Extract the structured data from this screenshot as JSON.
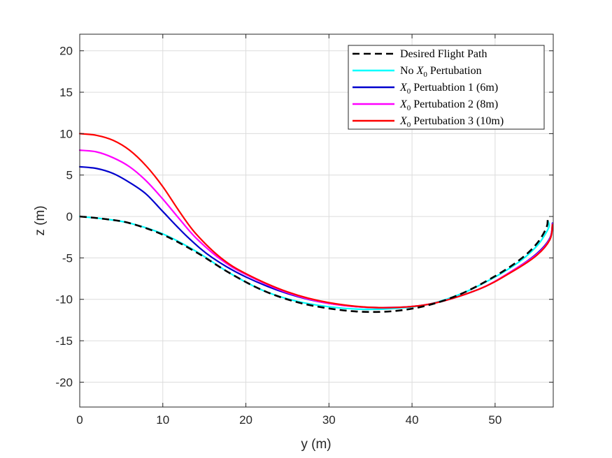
{
  "chart_data": {
    "type": "line",
    "title": "",
    "xlabel": "y (m)",
    "ylabel": "z (m)",
    "xlim": [
      0,
      57
    ],
    "ylim": [
      -23,
      22
    ],
    "xticks": [
      0,
      10,
      20,
      30,
      40,
      50
    ],
    "yticks": [
      20,
      15,
      10,
      5,
      0,
      -5,
      -10,
      -15,
      -20
    ],
    "grid": true,
    "legend_position": "top-right",
    "series": [
      {
        "name": "Desired Flight Path",
        "color": "#000000",
        "style": "dashed",
        "x": [
          0,
          3,
          6,
          10,
          14,
          18,
          22,
          26,
          30,
          34,
          38,
          42,
          46,
          50,
          53,
          55,
          56.2,
          56.3
        ],
        "y": [
          0,
          -0.3,
          -0.8,
          -2.2,
          -4.3,
          -6.8,
          -8.9,
          -10.3,
          -11.1,
          -11.5,
          -11.4,
          -10.7,
          -9.3,
          -7.2,
          -5.2,
          -3.3,
          -1.3,
          0
        ]
      },
      {
        "name": "No X0 Pertubation",
        "color": "#00FFFF",
        "style": "solid",
        "x": [
          0,
          3,
          6,
          10,
          14,
          18,
          22,
          26,
          30,
          34,
          38,
          42,
          46,
          50,
          53,
          55,
          56,
          56.5,
          56.4
        ],
        "y": [
          0,
          -0.3,
          -0.8,
          -2.1,
          -4.2,
          -6.8,
          -8.9,
          -10.2,
          -10.9,
          -11.2,
          -11.1,
          -10.6,
          -9.3,
          -7.3,
          -5.4,
          -3.6,
          -2.2,
          -1.2,
          -0.6
        ]
      },
      {
        "name": "X0 Pertuabtion 1 (6m)",
        "color": "#0000CD",
        "style": "solid",
        "x": [
          0,
          2,
          4,
          6,
          8,
          10,
          13,
          16,
          20,
          25,
          30,
          36,
          42,
          48,
          52,
          55,
          56.6,
          56.9
        ],
        "y": [
          6,
          5.8,
          5.2,
          4.1,
          2.7,
          0.6,
          -2.5,
          -5.0,
          -7.3,
          -9.3,
          -10.5,
          -11.0,
          -10.6,
          -8.8,
          -6.6,
          -4.5,
          -2.6,
          -0.8
        ]
      },
      {
        "name": "X0 Pertubation 2 (8m)",
        "color": "#FF00FF",
        "style": "solid",
        "x": [
          0,
          2,
          4,
          6,
          8,
          10,
          12,
          14,
          17,
          20,
          25,
          30,
          36,
          42,
          48,
          52,
          55,
          56.6,
          56.9
        ],
        "y": [
          8,
          7.8,
          7.1,
          6.0,
          4.3,
          2.1,
          -0.3,
          -2.6,
          -5.2,
          -7.0,
          -9.2,
          -10.5,
          -11.0,
          -10.6,
          -8.8,
          -6.6,
          -4.6,
          -2.7,
          -0.9
        ]
      },
      {
        "name": "X0 Pertubation 3 (10m)",
        "color": "#FF0000",
        "style": "solid",
        "x": [
          0,
          2,
          4,
          6,
          8,
          10,
          12,
          14,
          17,
          20,
          25,
          30,
          36,
          42,
          48,
          52,
          55,
          56.6,
          56.9
        ],
        "y": [
          10,
          9.8,
          9.2,
          8.0,
          6.1,
          3.6,
          0.6,
          -2.1,
          -5.0,
          -6.9,
          -9.1,
          -10.4,
          -11.0,
          -10.6,
          -8.8,
          -6.7,
          -4.7,
          -2.8,
          -1.0
        ]
      }
    ]
  },
  "legend": {
    "items": [
      {
        "prefix": "",
        "sym": "",
        "sub": "",
        "text": "Desired Flight Path"
      },
      {
        "prefix": "No ",
        "sym": "X",
        "sub": "0",
        "text": " Pertubation"
      },
      {
        "prefix": "",
        "sym": "X",
        "sub": "0",
        "text": " Pertuabtion 1 (6m)"
      },
      {
        "prefix": "",
        "sym": "X",
        "sub": "0",
        "text": " Pertubation 2 (8m)"
      },
      {
        "prefix": "",
        "sym": "X",
        "sub": "0",
        "text": " Pertubation 3 (10m)"
      }
    ]
  }
}
